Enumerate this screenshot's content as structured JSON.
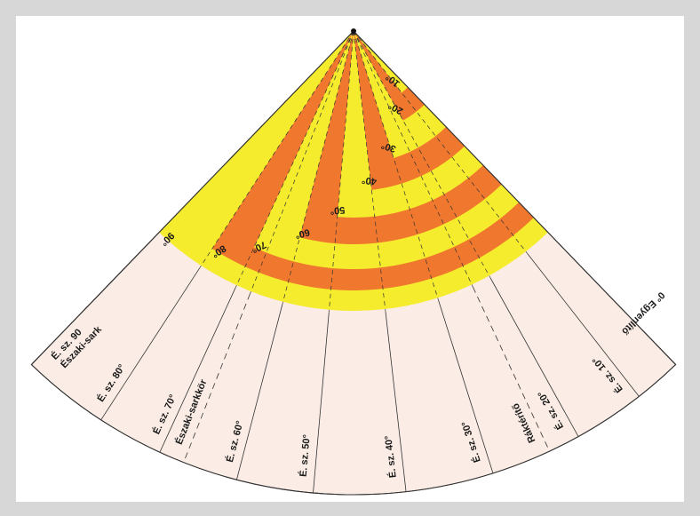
{
  "pole_label": [
    "É. sz. 90",
    "Északi-sark"
  ],
  "meridian_labels": [
    "É. sz. 80°",
    "É. sz. 70°",
    "Északi-sarkkör",
    "É. sz. 60°",
    "É. sz. 50°",
    "É. sz. 40°",
    "É. sz. 30°",
    "Ráktérítő",
    "É. sz. 20°",
    "É. sz. 10°"
  ],
  "equator_label": "0° Egyenlítő",
  "band_labels": [
    "90°",
    "80°",
    "70°",
    "60°",
    "50°",
    "40°",
    "30°",
    "20°",
    "10°"
  ]
}
